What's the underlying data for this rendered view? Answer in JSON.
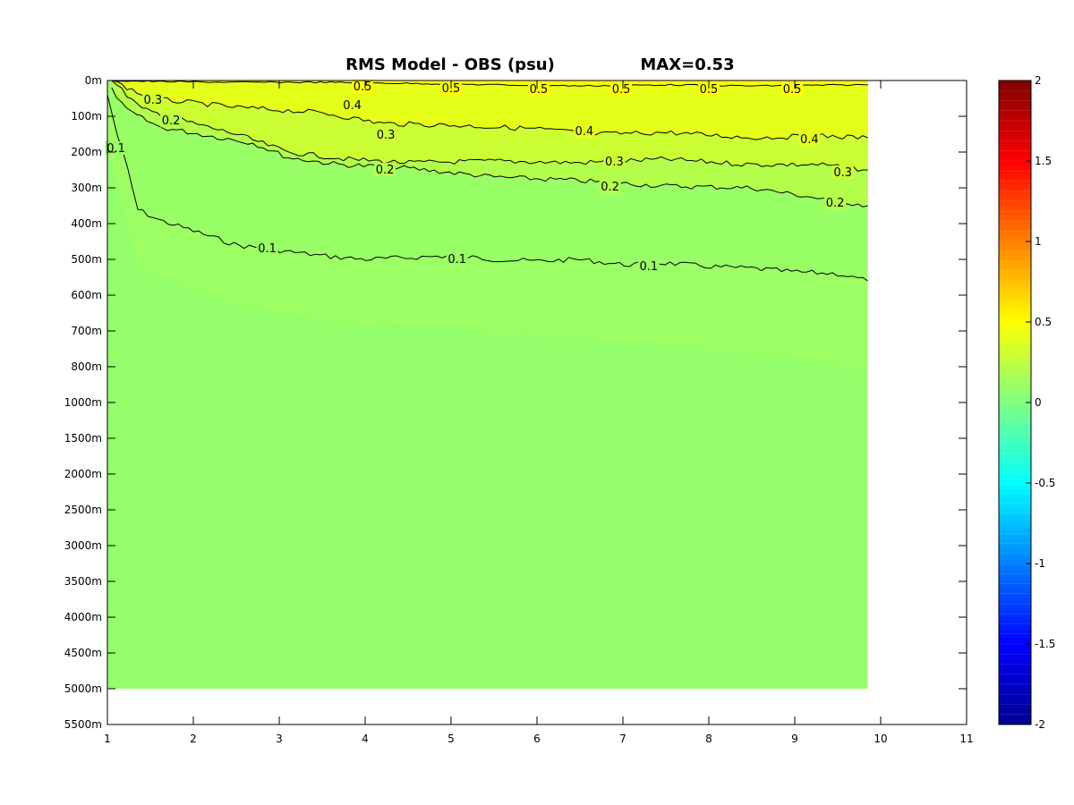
{
  "chart_data": {
    "type": "heatmap",
    "title": "RMS Model - OBS (psu)",
    "subtitle": "MAX=0.53",
    "xlabel": "",
    "ylabel": "",
    "xlim": [
      1,
      11
    ],
    "x_ticks": [
      "1",
      "2",
      "3",
      "4",
      "5",
      "6",
      "7",
      "8",
      "9",
      "10",
      "11"
    ],
    "y_ticks": [
      "0m",
      "100m",
      "200m",
      "300m",
      "400m",
      "500m",
      "600m",
      "700m",
      "800m",
      "1000m",
      "1500m",
      "2000m",
      "2500m",
      "3000m",
      "3500m",
      "4000m",
      "4500m",
      "5000m",
      "5500m"
    ],
    "data_x_range": [
      1,
      9.85
    ],
    "data_depth_max": "5000m",
    "colorbar": {
      "colormap": "jet",
      "range": [
        -2,
        2
      ],
      "ticks": [
        "2",
        "1.5",
        "1",
        "0.5",
        "0",
        "-0.5",
        "-1",
        "-1.5",
        "-2"
      ]
    },
    "colors": {
      "v05": "#ffff00",
      "v04": "#e6ff19",
      "v03": "#ccff33",
      "v02": "#b3ff4c",
      "v01": "#99ff66",
      "background_field": "#94ff6b"
    },
    "contour_levels": [
      0.5,
      0.4,
      0.3,
      0.2,
      0.1
    ],
    "contours": [
      {
        "level": 0.5,
        "depth_index_profile": [
          [
            1.0,
            0.0
          ],
          [
            1.6,
            0.03
          ],
          [
            2.5,
            0.05
          ],
          [
            3.5,
            0.05
          ],
          [
            4.5,
            0.08
          ],
          [
            5.5,
            0.12
          ],
          [
            6.5,
            0.15
          ],
          [
            7.5,
            0.12
          ],
          [
            8.5,
            0.15
          ],
          [
            9.85,
            0.12
          ]
        ]
      },
      {
        "level": 0.4,
        "depth_index_profile": [
          [
            1.05,
            0.0
          ],
          [
            1.5,
            0.5
          ],
          [
            2.5,
            0.75
          ],
          [
            3.5,
            0.9
          ],
          [
            4.2,
            1.2
          ],
          [
            5.0,
            1.25
          ],
          [
            6.0,
            1.35
          ],
          [
            6.7,
            1.5
          ],
          [
            7.5,
            1.45
          ],
          [
            8.5,
            1.6
          ],
          [
            9.3,
            1.55
          ],
          [
            9.85,
            1.6
          ]
        ]
      },
      {
        "level": 0.3,
        "depth_index_profile": [
          [
            1.05,
            0.0
          ],
          [
            1.4,
            0.8
          ],
          [
            2.0,
            1.2
          ],
          [
            2.5,
            1.5
          ],
          [
            3.1,
            2.0
          ],
          [
            3.8,
            2.2
          ],
          [
            4.5,
            2.3
          ],
          [
            5.5,
            2.25
          ],
          [
            6.5,
            2.3
          ],
          [
            7.5,
            2.2
          ],
          [
            8.5,
            2.35
          ],
          [
            9.3,
            2.35
          ],
          [
            9.85,
            2.5
          ]
        ]
      },
      {
        "level": 0.2,
        "depth_index_profile": [
          [
            1.05,
            0.2
          ],
          [
            1.2,
            0.8
          ],
          [
            1.6,
            1.3
          ],
          [
            2.2,
            1.55
          ],
          [
            2.7,
            1.75
          ],
          [
            3.1,
            2.15
          ],
          [
            3.7,
            2.35
          ],
          [
            4.5,
            2.45
          ],
          [
            5.5,
            2.7
          ],
          [
            6.5,
            2.8
          ],
          [
            7.5,
            2.95
          ],
          [
            8.5,
            3.0
          ],
          [
            9.3,
            3.3
          ],
          [
            9.85,
            3.5
          ]
        ]
      },
      {
        "level": 0.1,
        "depth_index_profile": [
          [
            1.0,
            0.4
          ],
          [
            1.1,
            1.4
          ],
          [
            1.25,
            2.6
          ],
          [
            1.35,
            3.6
          ],
          [
            1.6,
            3.9
          ],
          [
            2.0,
            4.2
          ],
          [
            2.5,
            4.6
          ],
          [
            3.0,
            4.75
          ],
          [
            3.5,
            4.9
          ],
          [
            4.0,
            5.0
          ],
          [
            4.5,
            4.95
          ],
          [
            5.0,
            4.9
          ],
          [
            5.5,
            5.0
          ],
          [
            6.0,
            5.05
          ],
          [
            6.5,
            5.0
          ],
          [
            7.0,
            5.15
          ],
          [
            7.5,
            5.1
          ],
          [
            8.0,
            5.2
          ],
          [
            8.5,
            5.25
          ],
          [
            9.0,
            5.35
          ],
          [
            9.5,
            5.4
          ],
          [
            9.85,
            5.6
          ]
        ]
      }
    ],
    "contour_labels": [
      {
        "text": "0.5",
        "x": 3.97,
        "yi": 0.17
      },
      {
        "text": "0.5",
        "x": 5.0,
        "yi": 0.22
      },
      {
        "text": "0.5",
        "x": 6.02,
        "yi": 0.25
      },
      {
        "text": "0.5",
        "x": 6.98,
        "yi": 0.25
      },
      {
        "text": "0.5",
        "x": 8.0,
        "yi": 0.25
      },
      {
        "text": "0.5",
        "x": 8.97,
        "yi": 0.25
      },
      {
        "text": "0.3",
        "x": 1.53,
        "yi": 0.55
      },
      {
        "text": "0.4",
        "x": 3.85,
        "yi": 0.7
      },
      {
        "text": "0.2",
        "x": 1.74,
        "yi": 1.13
      },
      {
        "text": "0.4",
        "x": 6.55,
        "yi": 1.43
      },
      {
        "text": "0.3",
        "x": 4.24,
        "yi": 1.53
      },
      {
        "text": "0.4",
        "x": 9.17,
        "yi": 1.65
      },
      {
        "text": "0.1",
        "x": 1.1,
        "yi": 1.9
      },
      {
        "text": "0.3",
        "x": 6.9,
        "yi": 2.28
      },
      {
        "text": "0.2",
        "x": 4.23,
        "yi": 2.5
      },
      {
        "text": "0.3",
        "x": 9.56,
        "yi": 2.57
      },
      {
        "text": "0.2",
        "x": 6.85,
        "yi": 2.98
      },
      {
        "text": "0.2",
        "x": 9.47,
        "yi": 3.43
      },
      {
        "text": "0.1",
        "x": 2.86,
        "yi": 4.7
      },
      {
        "text": "0.1",
        "x": 5.07,
        "yi": 5.0
      },
      {
        "text": "0.1",
        "x": 7.3,
        "yi": 5.2
      }
    ]
  }
}
